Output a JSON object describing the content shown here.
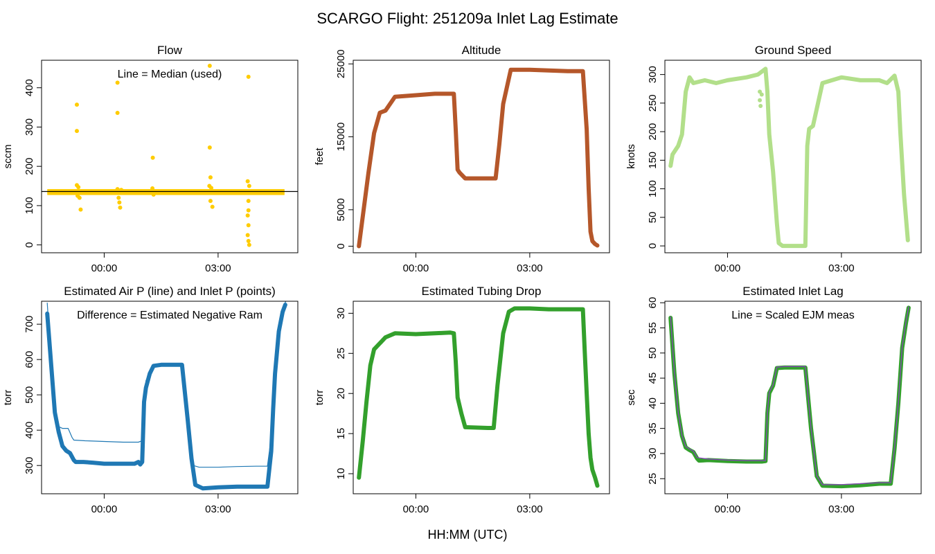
{
  "figure": {
    "title": "SCARGO Flight: 251209a  Inlet Lag Estimate",
    "xlabel": "HH:MM (UTC)",
    "x_tick_labels": [
      "00:00",
      "03:00"
    ]
  },
  "chart_data": [
    {
      "id": "flow",
      "type": "scatter",
      "title": "Flow",
      "ylabel": "sccm",
      "annotation": "Line = Median (used)",
      "xlim": [
        -1.65,
        5.1
      ],
      "ylim": [
        -20,
        470
      ],
      "yticks": [
        0,
        100,
        200,
        300,
        400
      ],
      "median_line": 136,
      "series": [
        {
          "color": "#ffcc00",
          "style": "band",
          "x": [
            -1.5,
            4.75
          ],
          "y": [
            127,
            142
          ]
        },
        {
          "color": "#ffcc00",
          "style": "points",
          "points": [
            [
              -0.72,
              357
            ],
            [
              -0.72,
              290
            ],
            [
              -0.72,
              152
            ],
            [
              -0.68,
              147
            ],
            [
              -0.7,
              125
            ],
            [
              -0.65,
              120
            ],
            [
              -0.62,
              90
            ],
            [
              0.35,
              413
            ],
            [
              0.35,
              336
            ],
            [
              0.35,
              142
            ],
            [
              0.38,
              120
            ],
            [
              0.4,
              108
            ],
            [
              0.42,
              95
            ],
            [
              0.45,
              140
            ],
            [
              1.28,
              222
            ],
            [
              1.27,
              144
            ],
            [
              1.3,
              128
            ],
            [
              2.78,
              456
            ],
            [
              2.78,
              248
            ],
            [
              2.8,
              172
            ],
            [
              2.77,
              150
            ],
            [
              2.82,
              145
            ],
            [
              2.8,
              112
            ],
            [
              2.85,
              97
            ],
            [
              3.8,
              428
            ],
            [
              3.78,
              162
            ],
            [
              3.82,
              150
            ],
            [
              3.8,
              112
            ],
            [
              3.8,
              88
            ],
            [
              3.78,
              75
            ],
            [
              3.8,
              50
            ],
            [
              3.78,
              25
            ],
            [
              3.8,
              10
            ],
            [
              3.82,
              0
            ]
          ]
        }
      ]
    },
    {
      "id": "altitude",
      "type": "line",
      "title": "Altitude",
      "ylabel": "feet",
      "xlim": [
        -1.65,
        5.1
      ],
      "ylim": [
        -900,
        25500
      ],
      "yticks": [
        0,
        5000,
        15000,
        25000
      ],
      "series": [
        {
          "color": "#b5572a",
          "style": "thick",
          "x": [
            -1.5,
            -1.25,
            -1.1,
            -0.95,
            -0.8,
            -0.55,
            0.0,
            0.5,
            1.0,
            1.05,
            1.1,
            1.15,
            1.3,
            1.6,
            2.1,
            2.2,
            2.3,
            2.5,
            3.0,
            3.5,
            4.0,
            4.4,
            4.5,
            4.55,
            4.6,
            4.65,
            4.72,
            4.78
          ],
          "y": [
            0,
            10000,
            15500,
            18300,
            18600,
            20500,
            20700,
            20900,
            20900,
            16000,
            10500,
            10100,
            9300,
            9300,
            9300,
            14000,
            19500,
            24200,
            24200,
            24100,
            24000,
            24000,
            16000,
            8000,
            2000,
            700,
            300,
            100
          ]
        }
      ]
    },
    {
      "id": "ground-speed",
      "type": "line",
      "title": "Ground Speed",
      "ylabel": "knots",
      "xlim": [
        -1.65,
        5.1
      ],
      "ylim": [
        -12,
        325
      ],
      "yticks": [
        0,
        50,
        100,
        150,
        200,
        250,
        300
      ],
      "series": [
        {
          "color": "#b2df8a",
          "style": "thick",
          "x": [
            -1.5,
            -1.45,
            -1.3,
            -1.2,
            -1.1,
            -1.0,
            -0.9,
            -0.6,
            -0.3,
            0.0,
            0.5,
            0.8,
            1.0,
            1.05,
            1.1,
            1.2,
            1.3,
            1.35,
            1.45,
            1.9,
            2.05,
            2.1,
            2.15,
            2.25,
            2.5,
            3.0,
            3.5,
            4.0,
            4.2,
            4.4,
            4.5,
            4.55,
            4.65,
            4.75
          ],
          "y": [
            140,
            160,
            175,
            195,
            270,
            295,
            285,
            290,
            285,
            290,
            295,
            300,
            310,
            270,
            195,
            130,
            40,
            5,
            0,
            0,
            0,
            175,
            205,
            210,
            285,
            295,
            290,
            290,
            285,
            298,
            270,
            200,
            90,
            10
          ]
        },
        {
          "color": "#b2df8a",
          "style": "points",
          "points": [
            [
              0.85,
              270
            ],
            [
              0.85,
              255
            ],
            [
              0.87,
              245
            ],
            [
              0.9,
              265
            ]
          ]
        }
      ]
    },
    {
      "id": "air-inlet-pressure",
      "type": "line",
      "title": "Estimated Air P (line) and Inlet P (points)",
      "ylabel": "torr",
      "annotation": "Difference = Estimated Negative Ram",
      "xlim": [
        -1.65,
        5.1
      ],
      "ylim": [
        220,
        765
      ],
      "yticks": [
        300,
        400,
        500,
        600,
        700
      ],
      "series": [
        {
          "color": "#1f78b4",
          "style": "thick",
          "name": "",
          "x": [
            -1.5,
            -1.4,
            -1.3,
            -1.2,
            -1.1,
            -1.0,
            -0.9,
            -0.8,
            -0.75,
            -0.55,
            -0.3,
            0.0,
            0.5,
            0.8,
            0.9,
            0.95,
            1.0,
            1.05,
            1.1,
            1.2,
            1.3,
            1.5,
            1.9,
            2.05,
            2.2,
            2.3,
            2.4,
            2.6,
            3.0,
            3.5,
            4.0,
            4.3,
            4.4,
            4.45,
            4.5,
            4.6,
            4.7,
            4.77
          ],
          "y": [
            730,
            590,
            450,
            395,
            355,
            342,
            335,
            315,
            310,
            310,
            308,
            305,
            305,
            305,
            310,
            303,
            310,
            480,
            520,
            560,
            582,
            585,
            585,
            585,
            430,
            320,
            245,
            235,
            238,
            240,
            240,
            240,
            340,
            460,
            560,
            680,
            735,
            755
          ]
        },
        {
          "color": "#1f78b4",
          "style": "thin",
          "name": "",
          "x": [
            -1.5,
            -1.4,
            -1.3,
            -1.2,
            -1.1,
            -0.95,
            -0.85,
            -0.8,
            -0.5,
            0.0,
            0.5,
            0.8,
            0.9,
            1.0,
            1.1,
            1.2,
            1.3,
            1.5,
            1.9,
            2.05,
            2.2,
            2.35,
            2.5,
            3.0,
            3.5,
            4.0,
            4.3,
            4.4,
            4.5,
            4.6,
            4.7,
            4.78
          ],
          "y": [
            760,
            600,
            470,
            410,
            405,
            405,
            380,
            372,
            370,
            368,
            366,
            366,
            366,
            370,
            540,
            565,
            583,
            585,
            585,
            585,
            440,
            300,
            295,
            295,
            297,
            298,
            298,
            380,
            560,
            690,
            740,
            765
          ]
        }
      ]
    },
    {
      "id": "tubing-drop",
      "type": "line",
      "title": "Estimated Tubing Drop",
      "ylabel": "torr",
      "xlim": [
        -1.65,
        5.1
      ],
      "ylim": [
        7.5,
        31.5
      ],
      "yticks": [
        10,
        15,
        20,
        25,
        30
      ],
      "series": [
        {
          "color": "#33a02c",
          "style": "thick",
          "x": [
            -1.5,
            -1.4,
            -1.3,
            -1.2,
            -1.1,
            -1.0,
            -0.9,
            -0.8,
            -0.55,
            0.0,
            0.5,
            0.9,
            1.0,
            1.05,
            1.1,
            1.2,
            1.3,
            1.9,
            2.05,
            2.15,
            2.3,
            2.45,
            2.6,
            3.0,
            3.5,
            4.0,
            4.4,
            4.45,
            4.5,
            4.55,
            4.6,
            4.65,
            4.72,
            4.78
          ],
          "y": [
            9.5,
            14,
            19,
            23.5,
            25.5,
            26,
            26.5,
            27,
            27.5,
            27.4,
            27.5,
            27.6,
            27.5,
            24,
            19.5,
            17.5,
            15.8,
            15.7,
            15.7,
            21,
            27.5,
            30.2,
            30.6,
            30.6,
            30.5,
            30.5,
            30.5,
            25,
            20,
            15,
            12,
            10.5,
            9.5,
            8.5
          ]
        }
      ]
    },
    {
      "id": "inlet-lag",
      "type": "line",
      "title": "Estimated Inlet Lag",
      "ylabel": "sec",
      "annotation": "Line = Scaled EJM meas",
      "xlim": [
        -1.65,
        5.1
      ],
      "ylim": [
        22,
        60.3
      ],
      "yticks": [
        25,
        30,
        35,
        40,
        45,
        50,
        55,
        60
      ],
      "series": [
        {
          "color": "#33a02c",
          "style": "thick",
          "x": [
            -1.5,
            -1.4,
            -1.3,
            -1.2,
            -1.1,
            -1.0,
            -0.9,
            -0.8,
            -0.75,
            -0.5,
            0.0,
            0.5,
            0.9,
            1.0,
            1.05,
            1.1,
            1.2,
            1.3,
            1.5,
            1.9,
            2.05,
            2.2,
            2.35,
            2.5,
            3.0,
            3.5,
            4.0,
            4.3,
            4.4,
            4.5,
            4.6,
            4.7,
            4.77
          ],
          "y": [
            57,
            46,
            38,
            33.5,
            31.2,
            30.7,
            30.3,
            29,
            28.6,
            28.7,
            28.5,
            28.4,
            28.4,
            28.5,
            38,
            42,
            43.5,
            47,
            47.1,
            47.1,
            47.1,
            35,
            25.5,
            23.6,
            23.5,
            23.7,
            24,
            24,
            31,
            40,
            51,
            56,
            59
          ]
        },
        {
          "color": "#8b3fbf",
          "style": "thin",
          "x": [
            -1.5,
            -1.4,
            -1.3,
            -1.2,
            -1.1,
            -1.0,
            -0.9,
            -0.8,
            -0.5,
            0.0,
            0.5,
            0.9,
            1.0,
            1.05,
            1.1,
            1.2,
            1.3,
            1.5,
            1.9,
            2.05,
            2.2,
            2.35,
            2.5,
            3.0,
            3.5,
            4.0,
            4.3,
            4.4,
            4.5,
            4.6,
            4.7,
            4.77
          ],
          "y": [
            57.2,
            46.2,
            38.2,
            33.6,
            31.4,
            30.9,
            30.5,
            29.2,
            28.9,
            28.7,
            28.6,
            28.6,
            28.6,
            38.2,
            42.2,
            43.7,
            47.2,
            47.3,
            47.3,
            47.3,
            35.1,
            25.6,
            23.8,
            23.8,
            24.0,
            24.2,
            24.2,
            31.2,
            40.2,
            51.2,
            56.2,
            59.2
          ]
        }
      ]
    }
  ]
}
